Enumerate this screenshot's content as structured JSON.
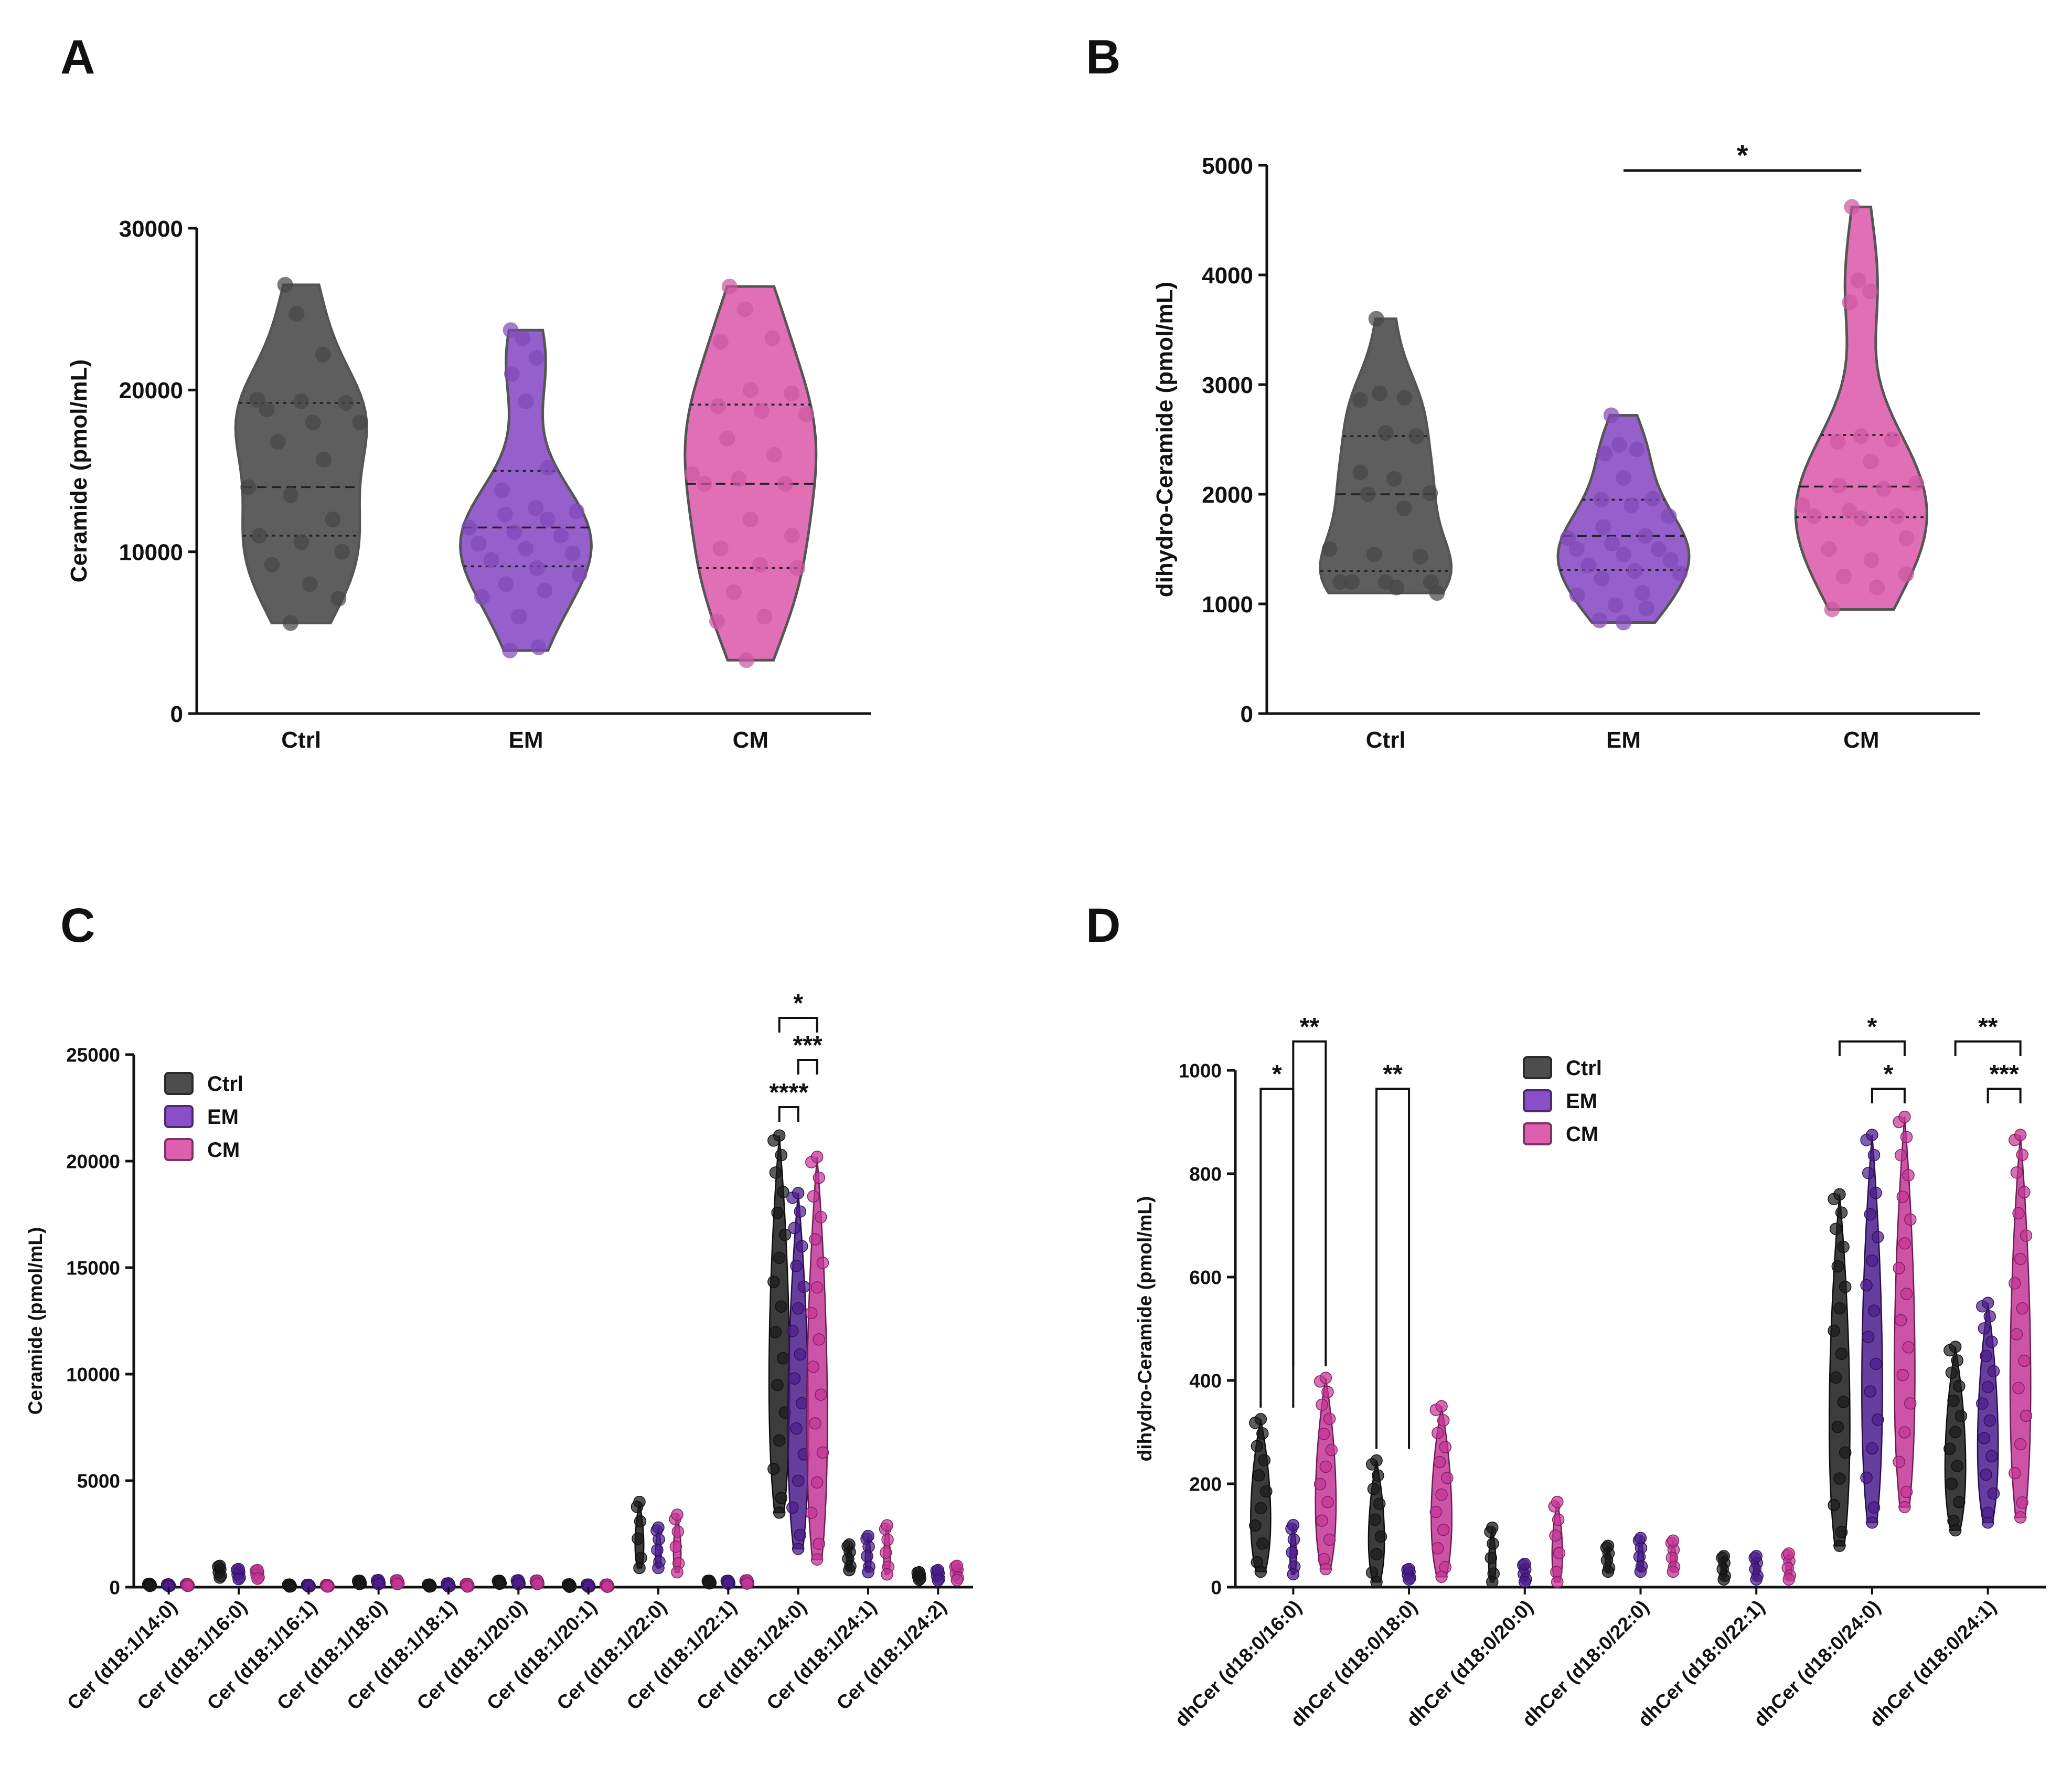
{
  "panel_letters": [
    "A",
    "B",
    "C",
    "D"
  ],
  "colors": {
    "Ctrl": "#4d4d4d",
    "EM": "#8a4fc7",
    "CM": "#dd5fae"
  },
  "chart_data": [
    {
      "panel": "A",
      "type": "violin",
      "ylabel": "Ceramide (pmol/mL)",
      "ylim": [
        0,
        30000
      ],
      "yticks": [
        0,
        10000,
        20000,
        30000
      ],
      "categories": [
        "Ctrl",
        "EM",
        "CM"
      ],
      "series": [
        {
          "name": "Ctrl",
          "min": 5600,
          "max": 26500,
          "median": 14000,
          "q1": 11000,
          "q3": 19200,
          "points": [
            26500,
            24700,
            22200,
            19400,
            19300,
            19200,
            18800,
            18000,
            18000,
            16800,
            15700,
            14000,
            13500,
            12000,
            11000,
            10600,
            10000,
            9200,
            8000,
            7100,
            5600
          ]
        },
        {
          "name": "EM",
          "min": 3900,
          "max": 23700,
          "median": 11500,
          "q1": 9100,
          "q3": 15000,
          "points": [
            23700,
            23200,
            22000,
            21000,
            19300,
            15200,
            13800,
            12700,
            12500,
            12300,
            12000,
            11500,
            11200,
            11000,
            10500,
            10200,
            9900,
            9500,
            9000,
            8600,
            8000,
            7600,
            7200,
            6000,
            4100,
            3900
          ]
        },
        {
          "name": "CM",
          "min": 3300,
          "max": 26400,
          "median": 14200,
          "q1": 9000,
          "q3": 19100,
          "points": [
            26400,
            25000,
            23200,
            23000,
            20000,
            19800,
            19000,
            18700,
            18500,
            17000,
            16000,
            14800,
            14500,
            14200,
            14200,
            12000,
            11000,
            10200,
            9200,
            9000,
            7500,
            6000,
            5700,
            3300
          ]
        }
      ]
    },
    {
      "panel": "B",
      "type": "violin",
      "ylabel": "dihydro-Ceramide (pmol/mL)",
      "ylim": [
        0,
        5000
      ],
      "yticks": [
        0,
        1000,
        2000,
        3000,
        4000,
        5000
      ],
      "categories": [
        "Ctrl",
        "EM",
        "CM"
      ],
      "series": [
        {
          "name": "Ctrl",
          "min": 1100,
          "max": 3600,
          "median": 2000,
          "q1": 1300,
          "q3": 2530,
          "points": [
            3600,
            2920,
            2880,
            2860,
            2560,
            2530,
            2200,
            2140,
            2010,
            2000,
            1870,
            1500,
            1450,
            1430,
            1200,
            1200,
            1200,
            1200,
            1150,
            1100
          ]
        },
        {
          "name": "EM",
          "min": 830,
          "max": 2720,
          "median": 1620,
          "q1": 1310,
          "q3": 1950,
          "points": [
            2720,
            2450,
            2410,
            2370,
            2150,
            1960,
            1950,
            1900,
            1800,
            1700,
            1620,
            1600,
            1550,
            1500,
            1500,
            1450,
            1400,
            1350,
            1300,
            1280,
            1230,
            1100,
            1080,
            990,
            960,
            850,
            830
          ]
        },
        {
          "name": "CM",
          "min": 950,
          "max": 4620,
          "median": 2070,
          "q1": 1790,
          "q3": 2540,
          "points": [
            4620,
            3950,
            3850,
            3750,
            2530,
            2500,
            2480,
            2300,
            2100,
            2080,
            2050,
            1900,
            1850,
            1800,
            1800,
            1780,
            1600,
            1500,
            1400,
            1270,
            1250,
            1150,
            950
          ]
        }
      ],
      "significance": [
        {
          "from": "EM",
          "to": "CM",
          "label": "*"
        }
      ]
    },
    {
      "panel": "C",
      "type": "violin",
      "ylabel": "Ceramide (pmol/mL)",
      "ylim": [
        0,
        25000
      ],
      "yticks": [
        0,
        5000,
        10000,
        15000,
        20000,
        25000
      ],
      "legend": {
        "placement": "top-left",
        "entries": [
          "Ctrl",
          "EM",
          "CM"
        ]
      },
      "categories": [
        "Cer (d18:1/14:0)",
        "Cer (d18:1/16:0)",
        "Cer (d18:1/16:1)",
        "Cer (d18:1/18:0)",
        "Cer (d18:1/18:1)",
        "Cer (d18:1/20:0)",
        "Cer (d18:1/20:1)",
        "Cer (d18:1/22:0)",
        "Cer (d18:1/22:1)",
        "Cer (d18:1/24:0)",
        "Cer (d18:1/24:1)",
        "Cer (d18:1/24:2)"
      ],
      "series": [
        {
          "name": "Ctrl",
          "min": [
            60,
            450,
            30,
            150,
            30,
            160,
            20,
            900,
            180,
            3500,
            800,
            350
          ],
          "max": [
            150,
            1000,
            120,
            300,
            120,
            300,
            130,
            4000,
            300,
            21200,
            2000,
            700
          ]
        },
        {
          "name": "EM",
          "min": [
            50,
            380,
            30,
            140,
            30,
            140,
            20,
            900,
            160,
            1800,
            700,
            320
          ],
          "max": [
            130,
            850,
            110,
            330,
            180,
            320,
            120,
            2800,
            300,
            18500,
            2400,
            800
          ]
        },
        {
          "name": "CM",
          "min": [
            60,
            400,
            30,
            140,
            30,
            150,
            20,
            700,
            170,
            1300,
            600,
            330
          ],
          "max": [
            140,
            800,
            100,
            320,
            150,
            310,
            120,
            3400,
            320,
            20200,
            2900,
            1000
          ]
        }
      ],
      "significance": [
        {
          "category": "Cer (d18:1/24:0)",
          "from": "Ctrl",
          "to": "CM",
          "label": "*"
        },
        {
          "category": "Cer (d18:1/24:0)",
          "from": "EM",
          "to": "CM",
          "label": "***"
        },
        {
          "category": "Cer (d18:1/24:0)",
          "from": "Ctrl",
          "to": "EM",
          "label": "****"
        }
      ]
    },
    {
      "panel": "D",
      "type": "violin",
      "ylabel": "dihydro-Ceramide (pmol/mL)",
      "ylim": [
        0,
        1000
      ],
      "yticks": [
        0,
        200,
        400,
        600,
        800,
        1000
      ],
      "legend": {
        "placement": "top-center",
        "entries": [
          "Ctrl",
          "EM",
          "CM"
        ]
      },
      "categories": [
        "dhCer (d18:0/16:0)",
        "dhCer (d18:0/18:0)",
        "dhCer (d18:0/20:0)",
        "dhCer (d18:0/22:0)",
        "dhCer (d18:0/22:1)",
        "dhCer (d18:0/24:0)",
        "dhCer (d18:0/24:1)"
      ],
      "series": [
        {
          "name": "Ctrl",
          "min": [
            30,
            10,
            10,
            30,
            15,
            80,
            110
          ],
          "max": [
            325,
            245,
            115,
            80,
            60,
            760,
            465
          ]
        },
        {
          "name": "EM",
          "min": [
            25,
            15,
            10,
            30,
            15,
            125,
            125
          ],
          "max": [
            120,
            35,
            45,
            95,
            60,
            875,
            550
          ]
        },
        {
          "name": "CM",
          "min": [
            35,
            20,
            10,
            30,
            15,
            155,
            135
          ],
          "max": [
            405,
            350,
            165,
            90,
            65,
            910,
            875
          ]
        }
      ],
      "significance": [
        {
          "category": "dhCer (d18:0/16:0)",
          "from": "Ctrl",
          "to": "EM",
          "label": "*"
        },
        {
          "category": "dhCer (d18:0/16:0)",
          "from": "EM",
          "to": "CM",
          "label": "**"
        },
        {
          "category": "dhCer (d18:0/18:0)",
          "from": "Ctrl",
          "to": "EM",
          "label": "**"
        },
        {
          "category": "dhCer (d18:0/24:0)",
          "from": "Ctrl",
          "to": "CM",
          "label": "*"
        },
        {
          "category": "dhCer (d18:0/24:0)",
          "from": "EM",
          "to": "CM",
          "label": "*"
        },
        {
          "category": "dhCer (d18:0/24:1)",
          "from": "Ctrl",
          "to": "CM",
          "label": "**"
        },
        {
          "category": "dhCer (d18:0/24:1)",
          "from": "EM",
          "to": "CM",
          "label": "***"
        }
      ]
    }
  ]
}
